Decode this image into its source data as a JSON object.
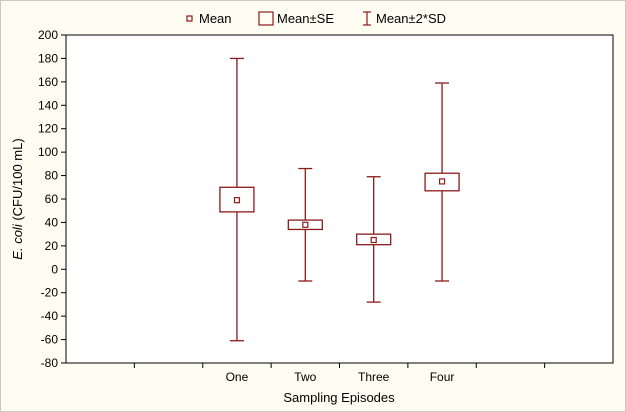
{
  "chart_data": {
    "type": "boxplot",
    "categories": [
      "One",
      "Two",
      "Three",
      "Four"
    ],
    "series": [
      {
        "category": "One",
        "mean": 59,
        "se_low": 49,
        "se_high": 70,
        "sd2_low": -61,
        "sd2_high": 180
      },
      {
        "category": "Two",
        "mean": 38,
        "se_low": 34,
        "se_high": 42,
        "sd2_low": -10,
        "sd2_high": 86
      },
      {
        "category": "Three",
        "mean": 25,
        "se_low": 21,
        "se_high": 30,
        "sd2_low": -28,
        "sd2_high": 79
      },
      {
        "category": "Four",
        "mean": 75,
        "se_low": 67,
        "se_high": 82,
        "sd2_low": -10,
        "sd2_high": 159
      }
    ],
    "xlabel": "Sampling Episodes",
    "ylabel_italic": "E. coli",
    "ylabel_rest": " (CFU/100 mL)",
    "ylim": [
      -80,
      200
    ],
    "yticks": [
      -80,
      -60,
      -40,
      -20,
      0,
      20,
      40,
      60,
      80,
      100,
      120,
      140,
      160,
      180,
      200
    ],
    "grid": false,
    "legend_position": "top",
    "legend": {
      "mean": "Mean",
      "se": "Mean±SE",
      "sd": "Mean±2*SD"
    },
    "color": "#8b1a1a"
  }
}
